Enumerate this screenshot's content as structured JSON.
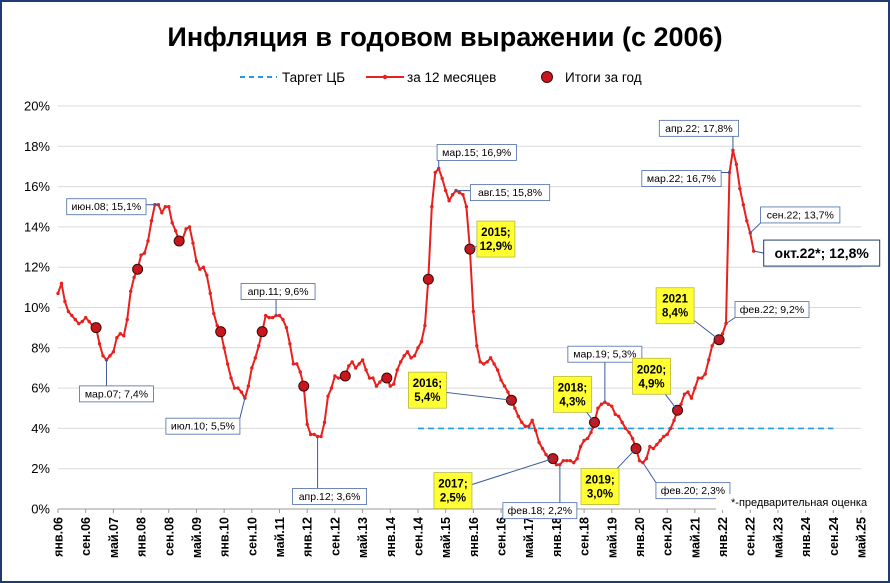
{
  "chart_data": {
    "type": "line",
    "title": "Инфляция в годовом выражении (с 2006)",
    "ylim": [
      0,
      20
    ],
    "yticks": [
      "0%",
      "2%",
      "4%",
      "6%",
      "8%",
      "10%",
      "12%",
      "14%",
      "16%",
      "18%",
      "20%"
    ],
    "x_tick_labels": [
      "янв.06",
      "сен.06",
      "май.07",
      "янв.08",
      "сен.08",
      "май.09",
      "янв.10",
      "сен.10",
      "май.11",
      "янв.12",
      "сен.12",
      "май.13",
      "янв.14",
      "сен.14",
      "май.15",
      "янв.16",
      "сен.16",
      "май.17",
      "янв.18",
      "сен.18",
      "май.19",
      "янв.20",
      "сен.20",
      "май.21",
      "янв.22",
      "сен.22",
      "май.23",
      "янв.24",
      "сен.24",
      "май.25"
    ],
    "x_start": "2006-01",
    "x_end": "2025-05",
    "grid": "horizontal",
    "legend": {
      "position": "top",
      "items": [
        {
          "label": "Таргет ЦБ",
          "style": "dashed",
          "color": "#1ea0e0"
        },
        {
          "label": "за 12 месяцев",
          "style": "line-markers",
          "color": "#e8201e"
        },
        {
          "label": "Итоги за год",
          "style": "circle",
          "color": "#c8161c"
        }
      ]
    },
    "series": [
      {
        "name": "за 12 месяцев",
        "color": "#e8201e",
        "x": [
          "2006-01",
          "2006-02",
          "2006-03",
          "2006-04",
          "2006-05",
          "2006-06",
          "2006-07",
          "2006-08",
          "2006-09",
          "2006-10",
          "2006-11",
          "2006-12",
          "2007-01",
          "2007-02",
          "2007-03",
          "2007-04",
          "2007-05",
          "2007-06",
          "2007-07",
          "2007-08",
          "2007-09",
          "2007-10",
          "2007-11",
          "2007-12",
          "2008-01",
          "2008-02",
          "2008-03",
          "2008-04",
          "2008-05",
          "2008-06",
          "2008-07",
          "2008-08",
          "2008-09",
          "2008-10",
          "2008-11",
          "2008-12",
          "2009-01",
          "2009-02",
          "2009-03",
          "2009-04",
          "2009-05",
          "2009-06",
          "2009-07",
          "2009-08",
          "2009-09",
          "2009-10",
          "2009-11",
          "2009-12",
          "2010-01",
          "2010-02",
          "2010-03",
          "2010-04",
          "2010-05",
          "2010-06",
          "2010-07",
          "2010-08",
          "2010-09",
          "2010-10",
          "2010-11",
          "2010-12",
          "2011-01",
          "2011-02",
          "2011-03",
          "2011-04",
          "2011-05",
          "2011-06",
          "2011-07",
          "2011-08",
          "2011-09",
          "2011-10",
          "2011-11",
          "2011-12",
          "2012-01",
          "2012-02",
          "2012-03",
          "2012-04",
          "2012-05",
          "2012-06",
          "2012-07",
          "2012-08",
          "2012-09",
          "2012-10",
          "2012-11",
          "2012-12",
          "2013-01",
          "2013-02",
          "2013-03",
          "2013-04",
          "2013-05",
          "2013-06",
          "2013-07",
          "2013-08",
          "2013-09",
          "2013-10",
          "2013-11",
          "2013-12",
          "2014-01",
          "2014-02",
          "2014-03",
          "2014-04",
          "2014-05",
          "2014-06",
          "2014-07",
          "2014-08",
          "2014-09",
          "2014-10",
          "2014-11",
          "2014-12",
          "2015-01",
          "2015-02",
          "2015-03",
          "2015-04",
          "2015-05",
          "2015-06",
          "2015-07",
          "2015-08",
          "2015-09",
          "2015-10",
          "2015-11",
          "2015-12",
          "2016-01",
          "2016-02",
          "2016-03",
          "2016-04",
          "2016-05",
          "2016-06",
          "2016-07",
          "2016-08",
          "2016-09",
          "2016-10",
          "2016-11",
          "2016-12",
          "2017-01",
          "2017-02",
          "2017-03",
          "2017-04",
          "2017-05",
          "2017-06",
          "2017-07",
          "2017-08",
          "2017-09",
          "2017-10",
          "2017-11",
          "2017-12",
          "2018-01",
          "2018-02",
          "2018-03",
          "2018-04",
          "2018-05",
          "2018-06",
          "2018-07",
          "2018-08",
          "2018-09",
          "2018-10",
          "2018-11",
          "2018-12",
          "2019-01",
          "2019-02",
          "2019-03",
          "2019-04",
          "2019-05",
          "2019-06",
          "2019-07",
          "2019-08",
          "2019-09",
          "2019-10",
          "2019-11",
          "2019-12",
          "2020-01",
          "2020-02",
          "2020-03",
          "2020-04",
          "2020-05",
          "2020-06",
          "2020-07",
          "2020-08",
          "2020-09",
          "2020-10",
          "2020-11",
          "2020-12",
          "2021-01",
          "2021-02",
          "2021-03",
          "2021-04",
          "2021-05",
          "2021-06",
          "2021-07",
          "2021-08",
          "2021-09",
          "2021-10",
          "2021-11",
          "2021-12",
          "2022-01",
          "2022-02",
          "2022-03",
          "2022-04",
          "2022-05",
          "2022-06",
          "2022-07",
          "2022-08",
          "2022-09",
          "2022-10"
        ],
        "y": [
          10.7,
          11.2,
          10.3,
          9.8,
          9.6,
          9.4,
          9.2,
          9.3,
          9.5,
          9.3,
          9.1,
          9.0,
          8.2,
          7.6,
          7.4,
          7.6,
          7.8,
          8.5,
          8.7,
          8.6,
          9.4,
          10.8,
          11.5,
          11.9,
          12.6,
          12.7,
          13.3,
          14.3,
          15.1,
          15.1,
          14.7,
          15.0,
          15.0,
          14.2,
          13.8,
          13.3,
          13.4,
          13.9,
          14.0,
          13.2,
          12.3,
          11.9,
          12.0,
          11.6,
          10.7,
          9.7,
          9.1,
          8.8,
          8.0,
          7.2,
          6.5,
          6.0,
          6.0,
          5.8,
          5.5,
          6.1,
          7.0,
          7.5,
          8.1,
          8.8,
          9.6,
          9.5,
          9.5,
          9.6,
          9.6,
          9.4,
          9.0,
          8.2,
          7.2,
          7.2,
          6.8,
          6.1,
          4.2,
          3.7,
          3.7,
          3.6,
          3.6,
          4.3,
          5.6,
          6.0,
          6.6,
          6.5,
          6.5,
          6.6,
          7.1,
          7.3,
          7.0,
          7.2,
          7.4,
          6.9,
          6.5,
          6.5,
          6.1,
          6.3,
          6.5,
          6.5,
          6.1,
          6.2,
          6.9,
          7.3,
          7.6,
          7.8,
          7.5,
          7.6,
          8.0,
          8.3,
          9.1,
          11.4,
          15.0,
          16.7,
          16.9,
          16.4,
          15.8,
          15.3,
          15.6,
          15.8,
          15.7,
          15.6,
          15.0,
          12.9,
          9.8,
          8.1,
          7.3,
          7.2,
          7.3,
          7.5,
          7.2,
          6.9,
          6.4,
          6.1,
          5.8,
          5.4,
          5.0,
          4.6,
          4.3,
          4.1,
          4.1,
          4.4,
          3.9,
          3.3,
          3.0,
          2.7,
          2.5,
          2.5,
          2.2,
          2.2,
          2.4,
          2.4,
          2.4,
          2.3,
          2.5,
          3.1,
          3.4,
          3.5,
          3.8,
          4.3,
          5.0,
          5.2,
          5.3,
          5.2,
          5.1,
          4.7,
          4.6,
          4.3,
          4.0,
          3.8,
          3.5,
          3.0,
          2.4,
          2.3,
          2.5,
          3.1,
          3.0,
          3.2,
          3.4,
          3.6,
          3.7,
          4.0,
          4.4,
          4.9,
          5.2,
          5.7,
          5.8,
          5.5,
          6.0,
          6.5,
          6.5,
          6.7,
          7.4,
          8.1,
          8.4,
          8.4,
          8.7,
          9.2,
          16.7,
          17.8,
          17.1,
          15.9,
          15.1,
          14.3,
          13.7,
          12.8
        ]
      }
    ],
    "target_line": {
      "name": "Таргет ЦБ",
      "value": 4,
      "x_from": "2014-09",
      "x_to": "2024-09"
    },
    "year_results": [
      {
        "x": "2006-12",
        "y": 9.0
      },
      {
        "x": "2007-12",
        "y": 11.9
      },
      {
        "x": "2008-12",
        "y": 13.3
      },
      {
        "x": "2009-12",
        "y": 8.8
      },
      {
        "x": "2010-12",
        "y": 8.8
      },
      {
        "x": "2011-12",
        "y": 6.1
      },
      {
        "x": "2012-12",
        "y": 6.6
      },
      {
        "x": "2013-12",
        "y": 6.5
      },
      {
        "x": "2014-12",
        "y": 11.4
      },
      {
        "x": "2015-12",
        "y": 12.9
      },
      {
        "x": "2016-12",
        "y": 5.4
      },
      {
        "x": "2017-12",
        "y": 2.5
      },
      {
        "x": "2018-12",
        "y": 4.3
      },
      {
        "x": "2019-12",
        "y": 3.0
      },
      {
        "x": "2020-12",
        "y": 4.9
      },
      {
        "x": "2021-12",
        "y": 8.4
      }
    ],
    "callouts": [
      {
        "text": "мар.07; 7,4%",
        "x": "2007-03",
        "y": 7.4,
        "style": "white",
        "place": "below"
      },
      {
        "text": "июн.08; 15,1%",
        "x": "2008-06",
        "y": 15.1,
        "style": "white",
        "place": "left"
      },
      {
        "text": "июл.10; 5,5%",
        "x": "2010-07",
        "y": 5.5,
        "style": "white",
        "place": "below-left"
      },
      {
        "text": "апр.11; 9,6%",
        "x": "2011-04",
        "y": 9.6,
        "style": "white",
        "place": "above"
      },
      {
        "text": "апр.12; 3,6%",
        "x": "2012-04",
        "y": 3.6,
        "style": "white",
        "place": "below"
      },
      {
        "text": "мар.15; 16,9%",
        "x": "2015-03",
        "y": 16.9,
        "style": "white",
        "place": "above-right"
      },
      {
        "text": "авг.15; 15,8%",
        "x": "2015-08",
        "y": 15.8,
        "style": "white",
        "place": "right"
      },
      {
        "text": "мар.19; 5,3%",
        "x": "2019-03",
        "y": 5.3,
        "style": "white",
        "place": "above"
      },
      {
        "text": "фев.18; 2,2%",
        "x": "2018-02",
        "y": 2.2,
        "style": "white",
        "place": "below-left"
      },
      {
        "text": "фев.20; 2,3%",
        "x": "2020-02",
        "y": 2.3,
        "style": "white",
        "place": "below-right"
      },
      {
        "text": "апр.22; 17,8%",
        "x": "2022-04",
        "y": 17.8,
        "style": "white",
        "place": "above-left"
      },
      {
        "text": "мар.22; 16,7%",
        "x": "2022-03",
        "y": 16.7,
        "style": "white",
        "place": "left"
      },
      {
        "text": "фев.22; 9,2%",
        "x": "2022-02",
        "y": 9.2,
        "style": "white",
        "place": "right"
      },
      {
        "text": "сен.22; 13,7%",
        "x": "2022-09",
        "y": 13.7,
        "style": "white",
        "place": "right"
      },
      {
        "text": "окт.22*; 12,8%",
        "x": "2022-10",
        "y": 12.8,
        "style": "big",
        "place": "right"
      },
      {
        "lines": [
          "2015;",
          "12,9%"
        ],
        "x": "2015-12",
        "y": 12.9,
        "style": "yellow",
        "place": "right"
      },
      {
        "lines": [
          "2016;",
          "5,4%"
        ],
        "x": "2016-12",
        "y": 5.4,
        "style": "yellow",
        "place": "left"
      },
      {
        "lines": [
          "2017;",
          "2,5%"
        ],
        "x": "2017-12",
        "y": 2.5,
        "style": "yellow",
        "place": "below-left"
      },
      {
        "lines": [
          "2018;",
          "4,3%"
        ],
        "x": "2018-12",
        "y": 4.3,
        "style": "yellow",
        "place": "left"
      },
      {
        "lines": [
          "2019;",
          "3,0%"
        ],
        "x": "2019-12",
        "y": 3.0,
        "style": "yellow",
        "place": "below-left"
      },
      {
        "lines": [
          "2020;",
          "4,9%"
        ],
        "x": "2020-12",
        "y": 4.9,
        "style": "yellow",
        "place": "left"
      },
      {
        "lines": [
          "2021",
          "8,4%"
        ],
        "x": "2021-12",
        "y": 8.4,
        "style": "yellow",
        "place": "left"
      }
    ],
    "footnote": "*-предварительная оценка"
  }
}
